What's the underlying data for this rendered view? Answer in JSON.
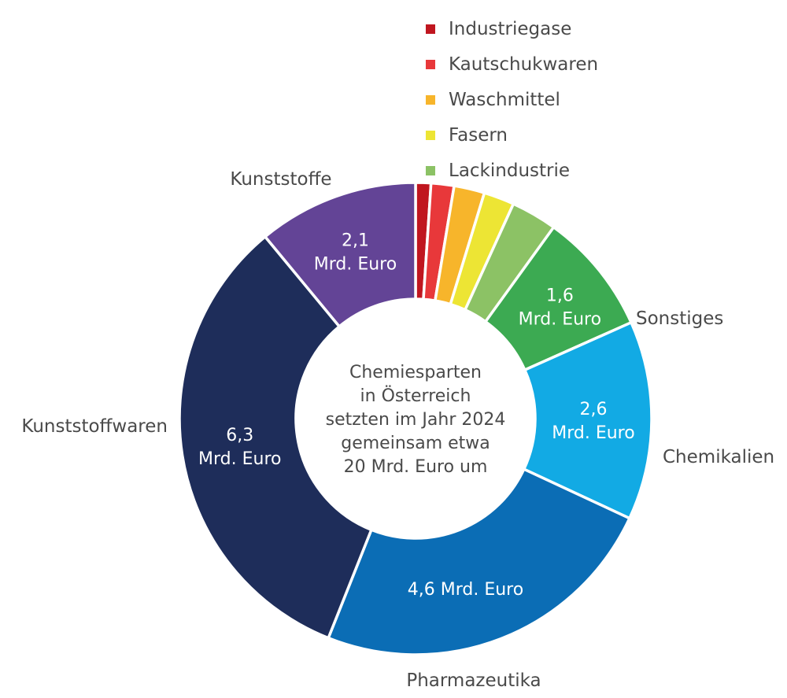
{
  "chart_data": {
    "type": "pie",
    "variant": "donut",
    "center_text": [
      "Chemiesparten",
      "in Österreich",
      "setzten im Jahr 2024",
      "gemeinsam etwa",
      "20 Mrd. Euro um"
    ],
    "total": 20,
    "unit": "Mrd. Euro",
    "slices": [
      {
        "name": "Industriegase",
        "value": 0.2,
        "color": "#c0161f",
        "label": null
      },
      {
        "name": "Kautschukwaren",
        "value": 0.3,
        "color": "#e8383a",
        "label": null
      },
      {
        "name": "Waschmittel",
        "value": 0.4,
        "color": "#f7b52b",
        "label": null
      },
      {
        "name": "Fasern",
        "value": 0.4,
        "color": "#ede534",
        "label": null
      },
      {
        "name": "Lackindustrie",
        "value": 0.6,
        "color": "#8cc265",
        "label": null
      },
      {
        "name": "Sonstiges",
        "value": 1.6,
        "color": "#3caa52",
        "label": [
          "1,6",
          "Mrd. Euro"
        ]
      },
      {
        "name": "Chemikalien",
        "value": 2.6,
        "color": "#12aae4",
        "label": [
          "2,6",
          "Mrd. Euro"
        ]
      },
      {
        "name": "Pharmazeutika",
        "value": 4.6,
        "color": "#0b6db5",
        "label": [
          "4,6 Mrd. Euro"
        ]
      },
      {
        "name": "Kunststoffwaren",
        "value": 6.3,
        "color": "#1e2d5a",
        "label": [
          "6,3",
          "Mrd. Euro"
        ]
      },
      {
        "name": "Kunststoffe",
        "value": 2.1,
        "color": "#634496",
        "label": [
          "2,1",
          "Mrd. Euro"
        ]
      }
    ],
    "legend": {
      "position": "top-right",
      "entries": [
        "Industriegase",
        "Kautschukwaren",
        "Waschmittel",
        "Fasern",
        "Lackindustrie"
      ]
    },
    "outside_labels": [
      "Sonstiges",
      "Chemikalien",
      "Pharmazeutika",
      "Kunststoffwaren",
      "Kunststoffe"
    ]
  }
}
